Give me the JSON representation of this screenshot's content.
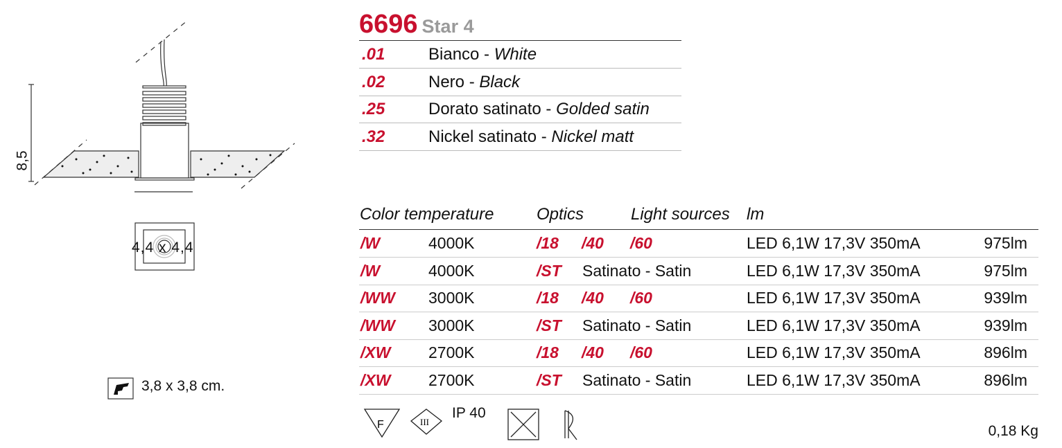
{
  "product": {
    "code": "6696",
    "name": "Star 4"
  },
  "finishes": [
    {
      "code": ".01",
      "it": "Bianco",
      "en": "White"
    },
    {
      "code": ".02",
      "it": "Nero",
      "en": "Black"
    },
    {
      "code": ".25",
      "it": "Dorato satinato",
      "en": "Golded satin"
    },
    {
      "code": ".32",
      "it": "Nickel satinato",
      "en": "Nickel matt"
    }
  ],
  "sep": " - ",
  "table": {
    "headers": {
      "color_temperature": "Color temperature",
      "optics": "Optics",
      "light_sources": "Light sources",
      "lm": "lm"
    },
    "rows": [
      {
        "code": "/W",
        "temp": "4000K",
        "o1": "/18",
        "o2": "/40",
        "o3": "/60",
        "optic_text": "",
        "source": "LED 6,1W 17,3V 350mA",
        "lm": "975lm"
      },
      {
        "code": "/W",
        "temp": "4000K",
        "o1": "/ST",
        "o2": "",
        "o3": "",
        "optic_text": "Satinato - Satin",
        "source": "LED 6,1W 17,3V 350mA",
        "lm": "975lm"
      },
      {
        "code": "/WW",
        "temp": "3000K",
        "o1": "/18",
        "o2": "/40",
        "o3": "/60",
        "optic_text": "",
        "source": "LED 6,1W 17,3V 350mA",
        "lm": "939lm"
      },
      {
        "code": "/WW",
        "temp": "3000K",
        "o1": "/ST",
        "o2": "",
        "o3": "",
        "optic_text": "Satinato - Satin",
        "source": "LED 6,1W 17,3V 350mA",
        "lm": "939lm"
      },
      {
        "code": "/XW",
        "temp": "2700K",
        "o1": "/18",
        "o2": "/40",
        "o3": "/60",
        "optic_text": "",
        "source": "LED 6,1W 17,3V 350mA",
        "lm": "896lm"
      },
      {
        "code": "/XW",
        "temp": "2700K",
        "o1": "/ST",
        "o2": "",
        "o3": "",
        "optic_text": "Satinato - Satin",
        "source": "LED 6,1W 17,3V 350mA",
        "lm": "896lm"
      }
    ]
  },
  "drawing": {
    "height": "8,5",
    "width": "4,4 x 4,4",
    "cutout": "3,8 x 3,8 cm."
  },
  "symbols": {
    "f_mark": "F",
    "class": "III",
    "ip": "IP 40",
    "icons": [
      "f-triangle-icon",
      "class-iii-icon",
      "no-insulation-cover-icon",
      "recessed-icon"
    ]
  },
  "weight": "0,18 Kg",
  "colors": {
    "accent": "#c8102e"
  }
}
